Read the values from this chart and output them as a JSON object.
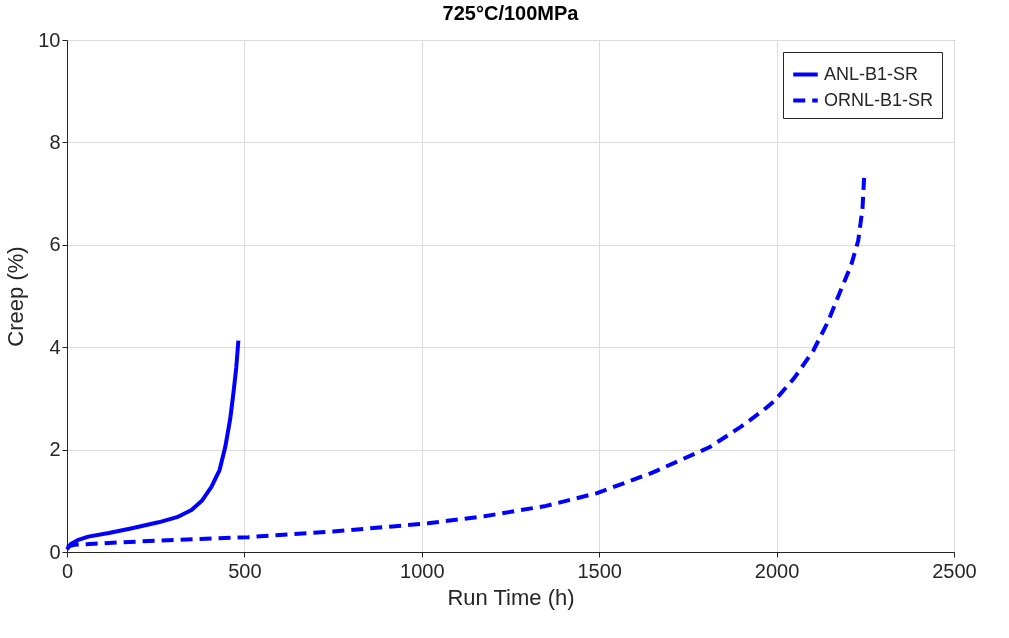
{
  "chart_data": {
    "type": "line",
    "title": "725°C/100MPa",
    "xlabel": "Run Time (h)",
    "ylabel": "Creep (%)",
    "xlim": [
      0,
      2500
    ],
    "xticks": [
      0,
      500,
      1000,
      1500,
      2000,
      2500
    ],
    "ylim": [
      0,
      10
    ],
    "yticks": [
      0,
      2,
      4,
      6,
      8,
      10
    ],
    "grid": true,
    "legend": "top right",
    "series": [
      {
        "name": "ANL-B1-SR",
        "color": "#0000ff",
        "line_style": "solid",
        "x": [
          0,
          10,
          30,
          60,
          118,
          180,
          258,
          310,
          351,
          380,
          407,
          430,
          446,
          460,
          469,
          477,
          483
        ],
        "values": [
          0.05,
          0.15,
          0.23,
          0.3,
          0.37,
          0.46,
          0.58,
          0.68,
          0.82,
          1.0,
          1.27,
          1.6,
          2.05,
          2.6,
          3.1,
          3.6,
          4.13
        ]
      },
      {
        "name": "ORNL-B1-SR",
        "color": "#0000ff",
        "line_style": "dashed",
        "x": [
          0,
          20,
          100,
          250,
          511,
          750,
          1017,
          1177,
          1350,
          1494,
          1650,
          1812,
          1900,
          1963,
          1995,
          2050,
          2104,
          2145,
          2177,
          2210,
          2230,
          2242,
          2247
        ],
        "values": [
          0.1,
          0.14,
          0.17,
          0.22,
          0.29,
          0.4,
          0.56,
          0.7,
          0.9,
          1.15,
          1.55,
          2.05,
          2.45,
          2.77,
          2.96,
          3.4,
          3.94,
          4.5,
          5.05,
          5.6,
          6.08,
          6.7,
          7.35
        ]
      }
    ]
  }
}
